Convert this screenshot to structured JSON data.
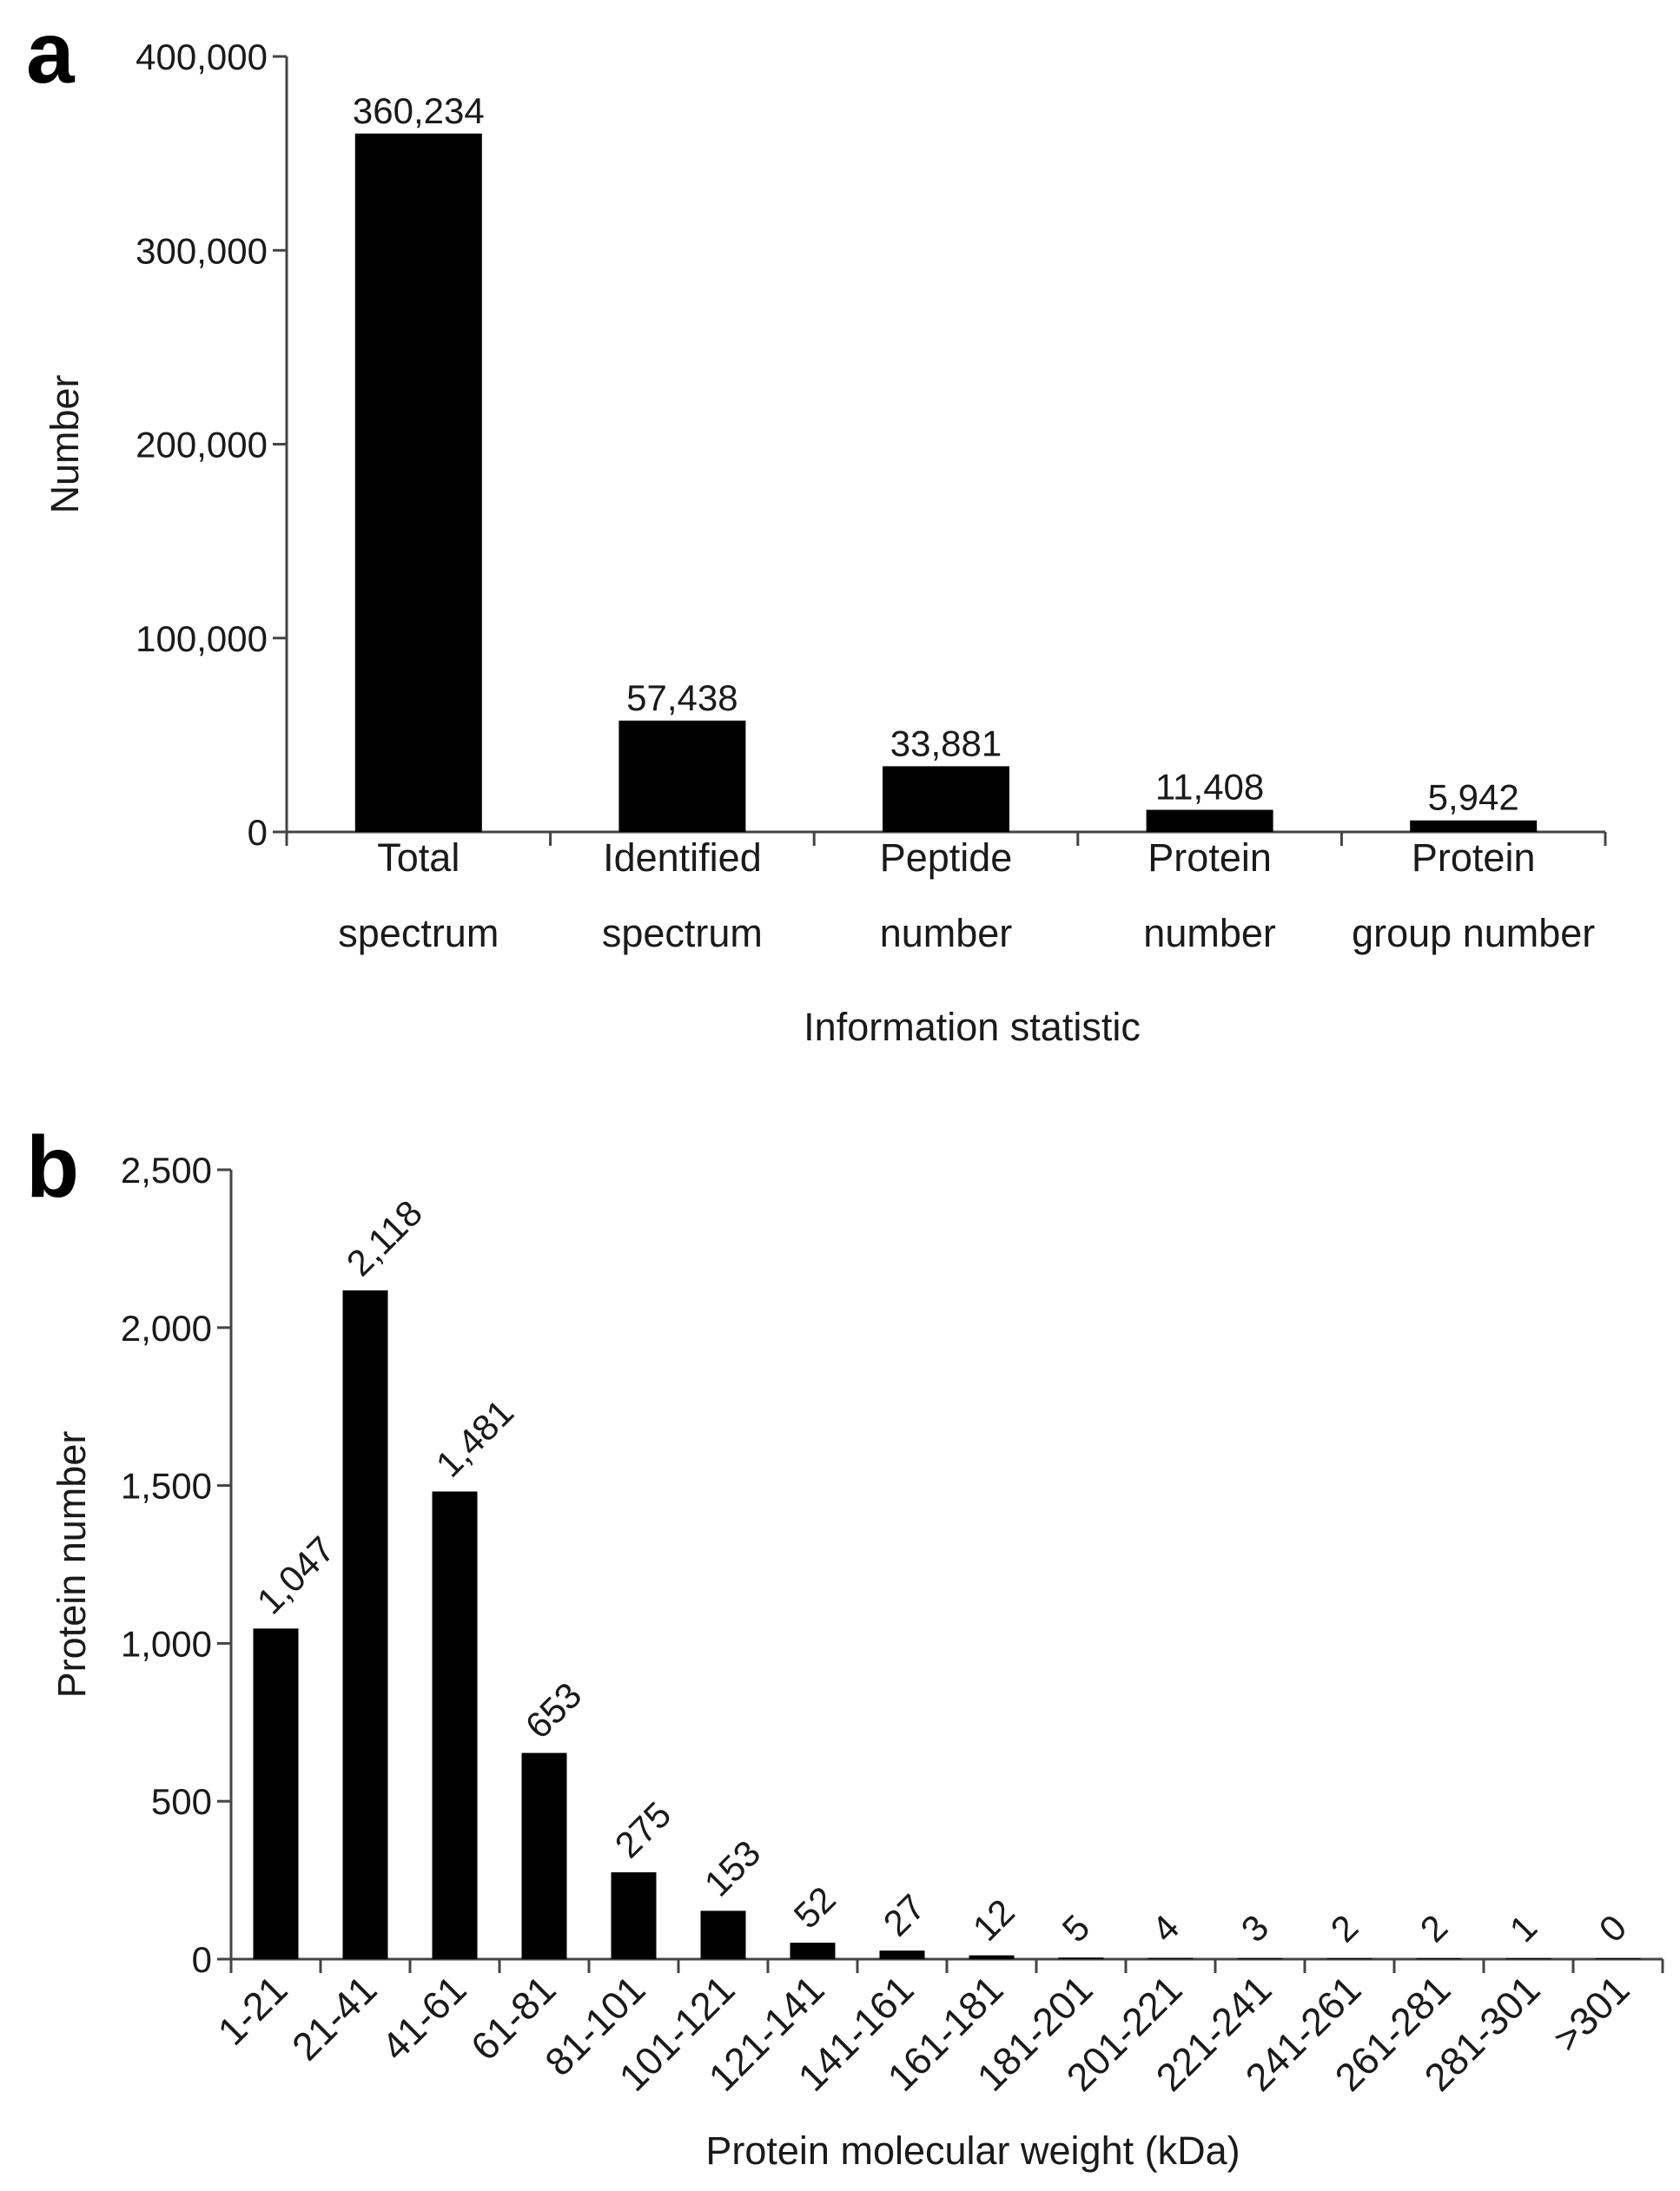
{
  "chart_data": [
    {
      "panel": "a",
      "type": "bar",
      "title": "",
      "xlabel": "Information statistic",
      "ylabel": "Number",
      "ylim": [
        0,
        400000
      ],
      "yticks": [
        0,
        100000,
        200000,
        300000,
        400000
      ],
      "ytick_labels": [
        "0",
        "100,000",
        "200,000",
        "300,000",
        "400,000"
      ],
      "categories": [
        [
          "Total",
          "spectrum"
        ],
        [
          "Identified",
          "spectrum"
        ],
        [
          "Peptide",
          "number"
        ],
        [
          "Protein",
          "number"
        ],
        [
          "Protein",
          "group number"
        ]
      ],
      "values": [
        360234,
        57438,
        33881,
        11408,
        5942
      ],
      "value_labels": [
        "360,234",
        "57,438",
        "33,881",
        "11,408",
        "5,942"
      ],
      "bar_color": "#000000",
      "grid": false
    },
    {
      "panel": "b",
      "type": "bar",
      "title": "",
      "xlabel": "Protein molecular weight (kDa)",
      "ylabel": "Protein number",
      "ylim": [
        0,
        2500
      ],
      "yticks": [
        0,
        500,
        1000,
        1500,
        2000,
        2500
      ],
      "ytick_labels": [
        "0",
        "500",
        "1,000",
        "1,500",
        "2,000",
        "2,500"
      ],
      "categories": [
        "1-21",
        "21-41",
        "41-61",
        "61-81",
        "81-101",
        "101-121",
        "121-141",
        "141-161",
        "161-181",
        "181-201",
        "201-221",
        "221-241",
        "241-261",
        "261-281",
        "281-301",
        ">301"
      ],
      "values": [
        1047,
        2118,
        1481,
        653,
        275,
        153,
        52,
        27,
        12,
        5,
        4,
        3,
        2,
        2,
        1,
        0
      ],
      "value_labels": [
        "1,047",
        "2,118",
        "1,481",
        "653",
        "275",
        "153",
        "52",
        "27",
        "12",
        "5",
        "4",
        "3",
        "2",
        "2",
        "1",
        "0"
      ],
      "bar_color": "#000000",
      "grid": false
    }
  ]
}
